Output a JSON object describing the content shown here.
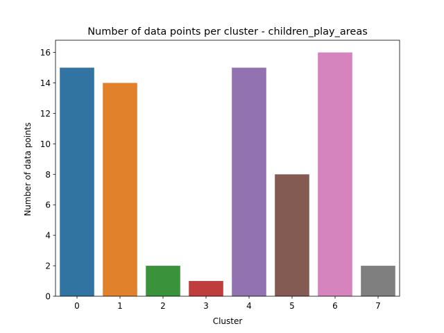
{
  "chart_data": {
    "type": "bar",
    "title": "Number of data points per cluster - children_play_areas",
    "xlabel": "Cluster",
    "ylabel": "Number of data points",
    "categories": [
      "0",
      "1",
      "2",
      "3",
      "4",
      "5",
      "6",
      "7"
    ],
    "values": [
      15,
      14,
      2,
      1,
      15,
      8,
      16,
      2
    ],
    "ylim": [
      0,
      16.8
    ],
    "yticks": [
      0,
      2,
      4,
      6,
      8,
      10,
      12,
      14,
      16
    ],
    "colors": [
      "#3274a1",
      "#e1812c",
      "#3a923a",
      "#c03d3e",
      "#9372b2",
      "#845b53",
      "#d684bd",
      "#7f7f7f"
    ],
    "grid": false,
    "legend": "none"
  }
}
